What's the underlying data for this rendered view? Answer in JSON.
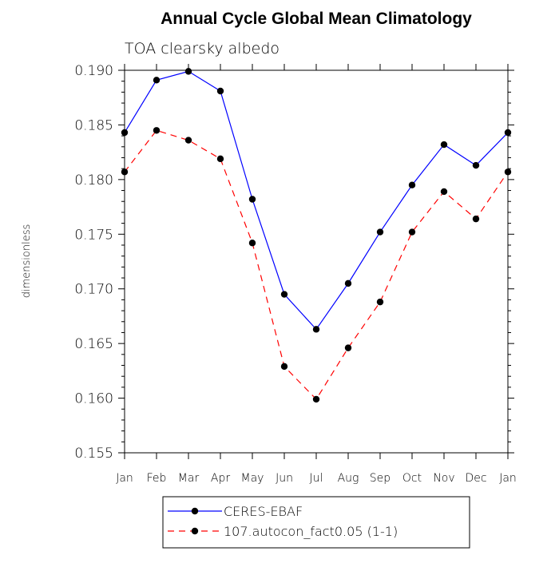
{
  "chart_data": {
    "type": "line",
    "title": "Annual Cycle Global Mean Climatology",
    "subtitle": "TOA clearsky albedo",
    "ylabel": "dimensionless",
    "xlabel": "",
    "categories": [
      "Jan",
      "Feb",
      "Mar",
      "Apr",
      "May",
      "Jun",
      "Jul",
      "Aug",
      "Sep",
      "Oct",
      "Nov",
      "Dec",
      "Jan"
    ],
    "ylim": [
      0.155,
      0.19
    ],
    "yticks": [
      "0.155",
      "0.160",
      "0.165",
      "0.170",
      "0.175",
      "0.180",
      "0.185",
      "0.190"
    ],
    "grid": false,
    "legend_placement": "bottom",
    "series": [
      {
        "name": "CERES-EBAF",
        "color": "#0000ff",
        "line_style": "solid",
        "marker": "filled-circle",
        "values": [
          0.1843,
          0.1891,
          0.1899,
          0.1881,
          0.1782,
          0.1695,
          0.1663,
          0.1705,
          0.1752,
          0.1795,
          0.1832,
          0.1813,
          0.1843
        ]
      },
      {
        "name": "107.autocon_fact0.05 (1-1)",
        "color": "#ff0000",
        "line_style": "dashed",
        "marker": "filled-circle",
        "values": [
          0.1807,
          0.1845,
          0.1836,
          0.1819,
          0.1742,
          0.1629,
          0.1599,
          0.1646,
          0.1688,
          0.1752,
          0.1789,
          0.1764,
          0.1807
        ]
      }
    ]
  }
}
